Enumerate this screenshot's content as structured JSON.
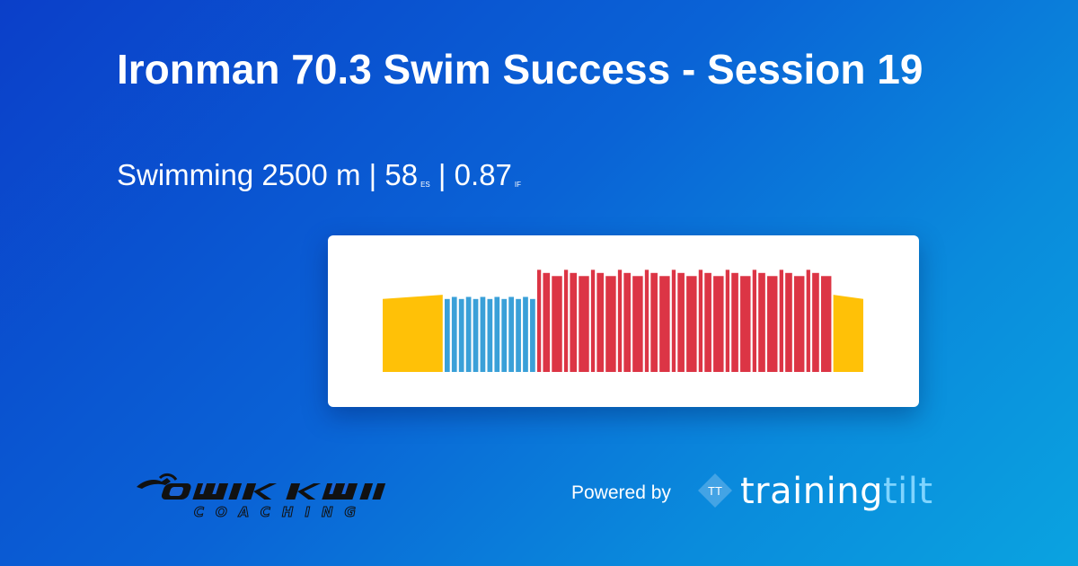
{
  "header": {
    "title": "Ironman 70.3 Swim Success - Session 19",
    "sport": "Swimming 2500 m",
    "sep": "|",
    "es_value": "58",
    "es_unit": "ES",
    "if_value": "0.87",
    "if_unit": "IF"
  },
  "chart_data": {
    "type": "bar",
    "ylim": [
      0,
      100
    ],
    "colors": {
      "warmup": "#ffc107",
      "drill": "#3aa0d8",
      "main": "#dc3545",
      "cooldown": "#ffc107"
    },
    "segments": [
      {
        "zone": "warmup",
        "w": 14,
        "start": 70,
        "end": 74
      },
      {
        "zone": "drill",
        "w": 1.2,
        "v": 70
      },
      {
        "zone": "drill",
        "w": 1.2,
        "v": 72
      },
      {
        "zone": "drill",
        "w": 1.2,
        "v": 70
      },
      {
        "zone": "drill",
        "w": 1.2,
        "v": 72
      },
      {
        "zone": "drill",
        "w": 1.2,
        "v": 70
      },
      {
        "zone": "drill",
        "w": 1.2,
        "v": 72
      },
      {
        "zone": "drill",
        "w": 1.2,
        "v": 70
      },
      {
        "zone": "drill",
        "w": 1.2,
        "v": 72
      },
      {
        "zone": "drill",
        "w": 1.2,
        "v": 70
      },
      {
        "zone": "drill",
        "w": 1.2,
        "v": 72
      },
      {
        "zone": "drill",
        "w": 1.2,
        "v": 70
      },
      {
        "zone": "drill",
        "w": 1.2,
        "v": 72
      },
      {
        "zone": "drill",
        "w": 1.2,
        "v": 70
      },
      {
        "zone": "main",
        "w": 0.9,
        "v": 98
      },
      {
        "zone": "main",
        "w": 1.6,
        "v": 95
      },
      {
        "zone": "main",
        "w": 2.4,
        "v": 92
      },
      {
        "zone": "main",
        "w": 0.9,
        "v": 98
      },
      {
        "zone": "main",
        "w": 1.6,
        "v": 95
      },
      {
        "zone": "main",
        "w": 2.4,
        "v": 92
      },
      {
        "zone": "main",
        "w": 0.9,
        "v": 98
      },
      {
        "zone": "main",
        "w": 1.6,
        "v": 95
      },
      {
        "zone": "main",
        "w": 2.4,
        "v": 92
      },
      {
        "zone": "main",
        "w": 0.9,
        "v": 98
      },
      {
        "zone": "main",
        "w": 1.6,
        "v": 95
      },
      {
        "zone": "main",
        "w": 2.4,
        "v": 92
      },
      {
        "zone": "main",
        "w": 0.9,
        "v": 98
      },
      {
        "zone": "main",
        "w": 1.6,
        "v": 95
      },
      {
        "zone": "main",
        "w": 2.4,
        "v": 92
      },
      {
        "zone": "main",
        "w": 0.9,
        "v": 98
      },
      {
        "zone": "main",
        "w": 1.6,
        "v": 95
      },
      {
        "zone": "main",
        "w": 2.4,
        "v": 92
      },
      {
        "zone": "main",
        "w": 0.9,
        "v": 98
      },
      {
        "zone": "main",
        "w": 1.6,
        "v": 95
      },
      {
        "zone": "main",
        "w": 2.4,
        "v": 92
      },
      {
        "zone": "main",
        "w": 0.9,
        "v": 98
      },
      {
        "zone": "main",
        "w": 1.6,
        "v": 95
      },
      {
        "zone": "main",
        "w": 2.4,
        "v": 92
      },
      {
        "zone": "main",
        "w": 0.9,
        "v": 98
      },
      {
        "zone": "main",
        "w": 1.6,
        "v": 95
      },
      {
        "zone": "main",
        "w": 2.4,
        "v": 92
      },
      {
        "zone": "main",
        "w": 0.9,
        "v": 98
      },
      {
        "zone": "main",
        "w": 1.6,
        "v": 95
      },
      {
        "zone": "main",
        "w": 2.4,
        "v": 92
      },
      {
        "zone": "main",
        "w": 0.9,
        "v": 98
      },
      {
        "zone": "main",
        "w": 1.6,
        "v": 95
      },
      {
        "zone": "main",
        "w": 2.4,
        "v": 92
      },
      {
        "zone": "cooldown",
        "w": 7,
        "start": 74,
        "end": 70
      }
    ]
  },
  "footer": {
    "coach_logo": {
      "name": "QWIK KIWI",
      "tagline": "COACHING"
    },
    "powered_by": "Powered by",
    "brand_mark": "TT",
    "brand_a": "training",
    "brand_b": "tilt"
  }
}
